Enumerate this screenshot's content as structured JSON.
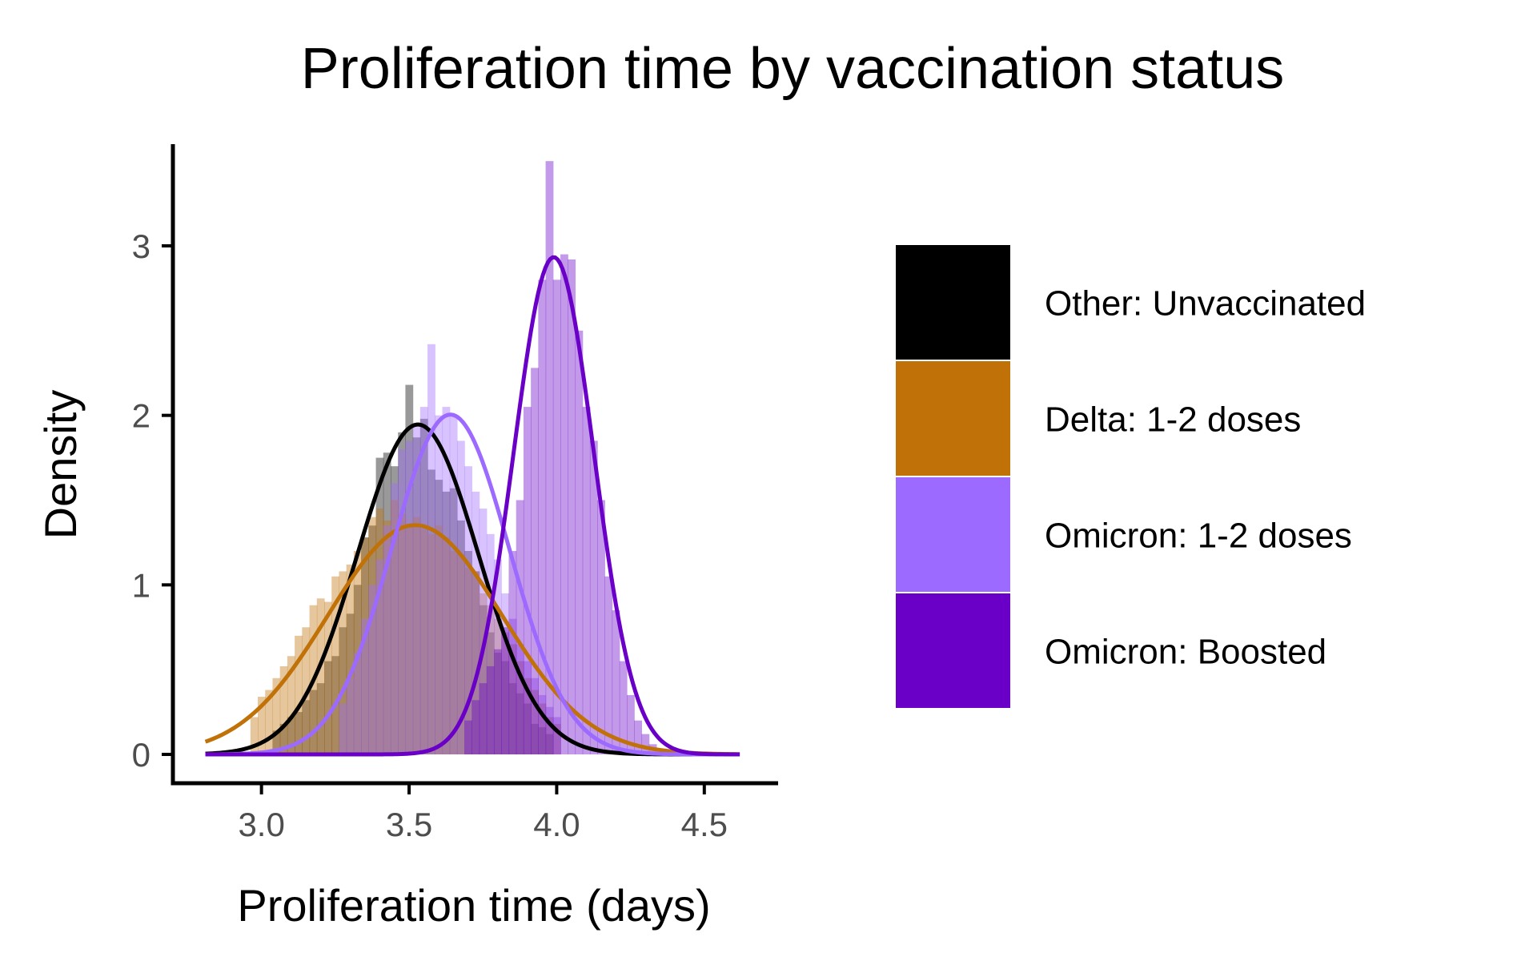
{
  "chart_data": {
    "type": "histogram_density",
    "title": "Proliferation time by vaccination status",
    "xlabel": "Proliferation time (days)",
    "ylabel": "Density",
    "xlim": [
      2.7,
      4.75
    ],
    "ylim": [
      -0.17,
      3.6
    ],
    "x_ticks": [
      "3.0",
      "3.5",
      "4.0",
      "4.5"
    ],
    "y_ticks": [
      "0",
      "1",
      "2",
      "3"
    ],
    "grid": false,
    "legend_position": "right",
    "bin_width": 0.025,
    "density_range": [
      2.81,
      4.62
    ],
    "series": [
      {
        "name": "Other: Unvaccinated",
        "color": "#000000",
        "mean": 3.53,
        "sd": 0.205,
        "hist": [
          [
            3.05,
            0.14
          ],
          [
            3.075,
            0.18
          ],
          [
            3.1,
            0.22
          ],
          [
            3.125,
            0.25
          ],
          [
            3.15,
            0.32
          ],
          [
            3.175,
            0.38
          ],
          [
            3.2,
            0.42
          ],
          [
            3.225,
            0.55
          ],
          [
            3.25,
            0.58
          ],
          [
            3.275,
            0.75
          ],
          [
            3.3,
            0.83
          ],
          [
            3.325,
            1.0
          ],
          [
            3.35,
            1.28
          ],
          [
            3.375,
            1.35
          ],
          [
            3.4,
            1.75
          ],
          [
            3.425,
            1.78
          ],
          [
            3.45,
            1.7
          ],
          [
            3.475,
            1.9
          ],
          [
            3.5,
            2.18
          ],
          [
            3.525,
            1.87
          ],
          [
            3.55,
            1.98
          ],
          [
            3.575,
            1.68
          ],
          [
            3.6,
            1.62
          ],
          [
            3.625,
            1.55
          ],
          [
            3.65,
            1.57
          ],
          [
            3.675,
            1.38
          ],
          [
            3.7,
            1.2
          ],
          [
            3.725,
            1.08
          ],
          [
            3.75,
            0.88
          ],
          [
            3.775,
            0.72
          ],
          [
            3.8,
            0.6
          ],
          [
            3.825,
            0.55
          ],
          [
            3.85,
            0.42
          ],
          [
            3.875,
            0.36
          ],
          [
            3.9,
            0.3
          ],
          [
            3.925,
            0.18
          ],
          [
            3.95,
            0.16
          ],
          [
            3.975,
            0.12
          ]
        ]
      },
      {
        "name": "Delta: 1-2 doses",
        "color": "#c07209",
        "mean": 3.52,
        "sd": 0.295,
        "hist": [
          [
            2.975,
            0.22
          ],
          [
            3.0,
            0.34
          ],
          [
            3.025,
            0.38
          ],
          [
            3.05,
            0.45
          ],
          [
            3.075,
            0.52
          ],
          [
            3.1,
            0.58
          ],
          [
            3.125,
            0.7
          ],
          [
            3.15,
            0.75
          ],
          [
            3.175,
            0.88
          ],
          [
            3.2,
            0.92
          ],
          [
            3.225,
            0.9
          ],
          [
            3.25,
            1.05
          ],
          [
            3.275,
            1.08
          ],
          [
            3.3,
            1.12
          ],
          [
            3.325,
            1.2
          ],
          [
            3.35,
            1.28
          ],
          [
            3.375,
            1.4
          ],
          [
            3.4,
            1.45
          ],
          [
            3.425,
            1.38
          ],
          [
            3.45,
            1.5
          ],
          [
            3.475,
            1.42
          ],
          [
            3.5,
            1.35
          ],
          [
            3.525,
            1.4
          ],
          [
            3.55,
            1.33
          ],
          [
            3.575,
            1.3
          ],
          [
            3.6,
            1.35
          ],
          [
            3.625,
            1.28
          ],
          [
            3.65,
            1.2
          ],
          [
            3.675,
            1.18
          ],
          [
            3.7,
            1.1
          ],
          [
            3.725,
            1.08
          ],
          [
            3.75,
            0.95
          ],
          [
            3.775,
            0.88
          ],
          [
            3.8,
            0.8
          ],
          [
            3.825,
            0.72
          ],
          [
            3.85,
            0.65
          ],
          [
            3.875,
            0.55
          ],
          [
            3.9,
            0.45
          ],
          [
            3.925,
            0.38
          ],
          [
            3.95,
            0.3
          ],
          [
            3.975,
            0.22
          ],
          [
            4.0,
            0.18
          ]
        ]
      },
      {
        "name": "Omicron: 1-2 doses",
        "color": "#9d6aff",
        "mean": 3.64,
        "sd": 0.199,
        "hist": [
          [
            3.275,
            0.3
          ],
          [
            3.3,
            0.45
          ],
          [
            3.325,
            0.6
          ],
          [
            3.35,
            0.8
          ],
          [
            3.375,
            1.0
          ],
          [
            3.4,
            1.15
          ],
          [
            3.425,
            1.35
          ],
          [
            3.45,
            1.6
          ],
          [
            3.475,
            1.8
          ],
          [
            3.5,
            1.85
          ],
          [
            3.525,
            1.95
          ],
          [
            3.55,
            2.05
          ],
          [
            3.575,
            2.42
          ],
          [
            3.6,
            2.0
          ],
          [
            3.625,
            2.05
          ],
          [
            3.65,
            2.0
          ],
          [
            3.675,
            1.85
          ],
          [
            3.7,
            1.7
          ],
          [
            3.725,
            1.55
          ],
          [
            3.75,
            1.45
          ],
          [
            3.775,
            1.3
          ],
          [
            3.8,
            1.15
          ],
          [
            3.825,
            0.95
          ],
          [
            3.85,
            0.8
          ],
          [
            3.875,
            0.65
          ],
          [
            3.9,
            0.55
          ],
          [
            3.925,
            0.45
          ],
          [
            3.95,
            0.35
          ],
          [
            3.975,
            0.28
          ],
          [
            4.0,
            0.22
          ]
        ]
      },
      {
        "name": "Omicron: Boosted",
        "color": "#6a00c8",
        "mean": 3.99,
        "sd": 0.136,
        "hist": [
          [
            3.7,
            0.2
          ],
          [
            3.725,
            0.32
          ],
          [
            3.75,
            0.42
          ],
          [
            3.775,
            0.52
          ],
          [
            3.8,
            0.62
          ],
          [
            3.825,
            0.75
          ],
          [
            3.85,
            1.2
          ],
          [
            3.875,
            1.5
          ],
          [
            3.9,
            2.05
          ],
          [
            3.925,
            2.28
          ],
          [
            3.95,
            2.8
          ],
          [
            3.975,
            3.5
          ],
          [
            4.0,
            2.8
          ],
          [
            4.025,
            2.95
          ],
          [
            4.05,
            2.92
          ],
          [
            4.075,
            2.5
          ],
          [
            4.1,
            2.05
          ],
          [
            4.125,
            1.85
          ],
          [
            4.15,
            1.5
          ],
          [
            4.175,
            1.05
          ],
          [
            4.2,
            0.85
          ],
          [
            4.225,
            0.55
          ],
          [
            4.25,
            0.35
          ],
          [
            4.275,
            0.2
          ],
          [
            4.3,
            0.12
          ],
          [
            4.325,
            0.06
          ]
        ]
      }
    ]
  }
}
